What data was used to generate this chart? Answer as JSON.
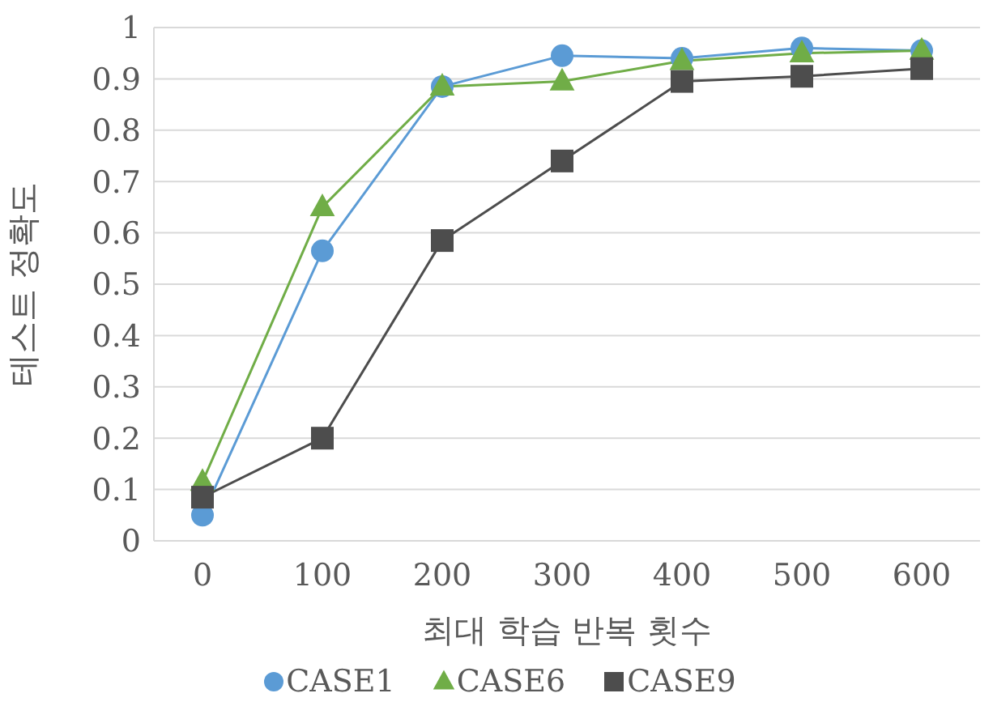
{
  "chart_data": {
    "type": "line",
    "xlabel": "최대 학습 반복 횟수",
    "ylabel": "테스트 정확도",
    "categories": [
      "0",
      "100",
      "200",
      "300",
      "400",
      "500",
      "600"
    ],
    "series": [
      {
        "name": "CASE1",
        "color": "#5b9bd5",
        "marker": "circle",
        "values": [
          0.05,
          0.565,
          0.885,
          0.945,
          0.94,
          0.96,
          0.955
        ]
      },
      {
        "name": "CASE6",
        "color": "#70ad47",
        "marker": "triangle",
        "values": [
          0.115,
          0.65,
          0.885,
          0.895,
          0.935,
          0.95,
          0.955
        ]
      },
      {
        "name": "CASE9",
        "color": "#4d4d4d",
        "marker": "square",
        "values": [
          0.085,
          0.2,
          0.585,
          0.74,
          0.895,
          0.905,
          0.92
        ]
      }
    ],
    "ylim": [
      0,
      1
    ],
    "yticks": [
      0,
      0.1,
      0.2,
      0.3,
      0.4,
      0.5,
      0.6,
      0.7,
      0.8,
      0.9,
      1
    ],
    "grid": "y",
    "legend": "bottom"
  }
}
